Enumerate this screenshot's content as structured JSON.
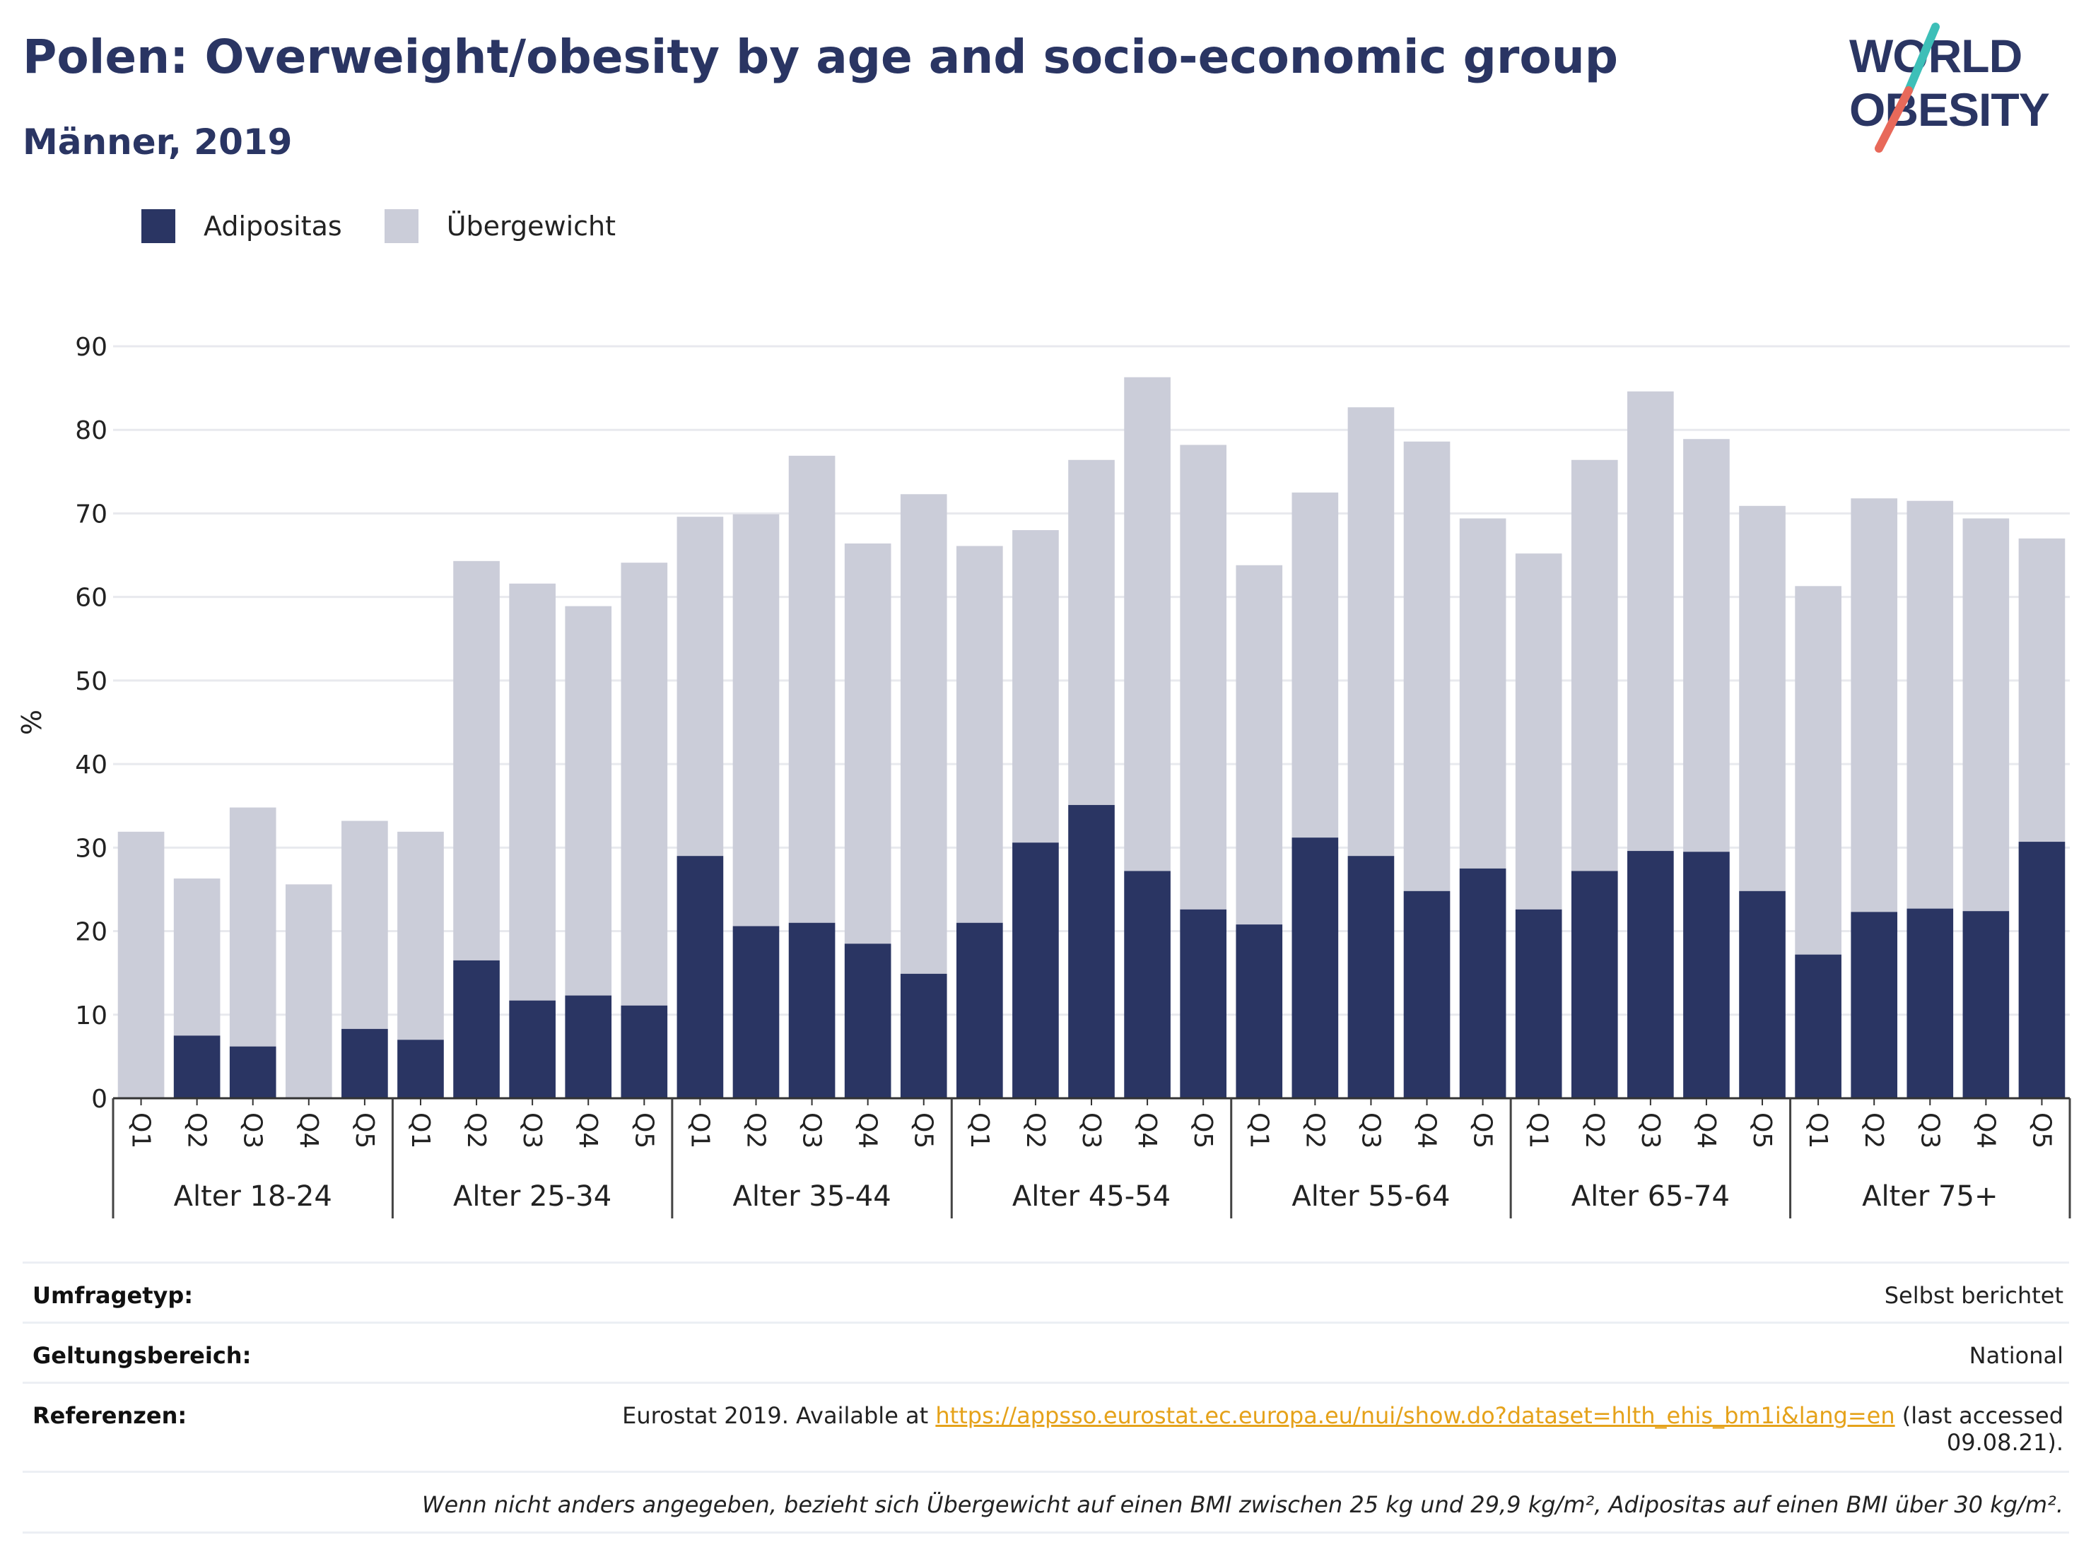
{
  "header": {
    "title": "Polen: Overweight/obesity by age and socio-economic group",
    "subtitle": "Männer, 2019"
  },
  "logo": {
    "line1": "WORLD",
    "line2": "OBESITY",
    "accent_colors": [
      "#3dbfb8",
      "#e8695a"
    ]
  },
  "legend": [
    {
      "label": "Adipositas",
      "color": "#2a3563"
    },
    {
      "label": "Übergewicht",
      "color": "#cbcdd9"
    }
  ],
  "chart_data": {
    "type": "bar",
    "stacked": true,
    "ylabel": "%",
    "ylim": [
      0,
      90
    ],
    "yticks": [
      0,
      10,
      20,
      30,
      40,
      50,
      60,
      70,
      80,
      90
    ],
    "grid": true,
    "legend_position": "top-left",
    "groups": [
      "Alter 18-24",
      "Alter 25-34",
      "Alter 35-44",
      "Alter 45-54",
      "Alter 55-64",
      "Alter 65-74",
      "Alter 75+"
    ],
    "categories": [
      "Q1",
      "Q2",
      "Q3",
      "Q4",
      "Q5"
    ],
    "series": [
      {
        "name": "Adipositas",
        "color": "#2a3563",
        "values": [
          [
            0,
            7.5,
            6.2,
            0,
            8.3
          ],
          [
            7,
            16.5,
            11.7,
            12.3,
            11.1
          ],
          [
            29,
            20.6,
            21,
            18.5,
            14.9
          ],
          [
            21,
            30.6,
            35.1,
            27.2,
            22.6
          ],
          [
            20.8,
            31.2,
            29,
            24.8,
            27.5
          ],
          [
            22.6,
            27.2,
            29.6,
            29.5,
            24.8
          ],
          [
            17.2,
            22.3,
            22.7,
            22.4,
            30.7
          ]
        ]
      },
      {
        "name": "Übergewicht",
        "color": "#cbcdd9",
        "values": [
          [
            31.9,
            18.8,
            28.6,
            25.6,
            24.9
          ],
          [
            24.9,
            47.8,
            49.9,
            46.6,
            53
          ],
          [
            40.6,
            49.3,
            55.9,
            47.9,
            57.4
          ],
          [
            45.1,
            37.4,
            41.3,
            59.1,
            55.6
          ],
          [
            43,
            41.3,
            53.7,
            53.8,
            41.9
          ],
          [
            42.6,
            49.2,
            55,
            49.4,
            46.1
          ],
          [
            44.1,
            49.5,
            48.8,
            47,
            36.3
          ]
        ]
      }
    ]
  },
  "info": {
    "survey_label": "Umfragetyp:",
    "survey_value": "Selbst berichtet",
    "scope_label": "Geltungsbereich:",
    "scope_value": "National",
    "ref_label": "Referenzen:",
    "ref_prefix": "Eurostat 2019. Available at",
    "ref_link": "https://appsso.eurostat.ec.europa.eu/nui/show.do?dataset=hlth_ehis_bm1i&lang=en",
    "ref_suffix": "(last accessed",
    "ref_date": "09.08.21).",
    "note": "Wenn nicht anders angegeben, bezieht sich Übergewicht auf einen BMI zwischen 25 kg und 29,9 kg/m², Adipositas auf einen BMI über 30 kg/m²."
  }
}
